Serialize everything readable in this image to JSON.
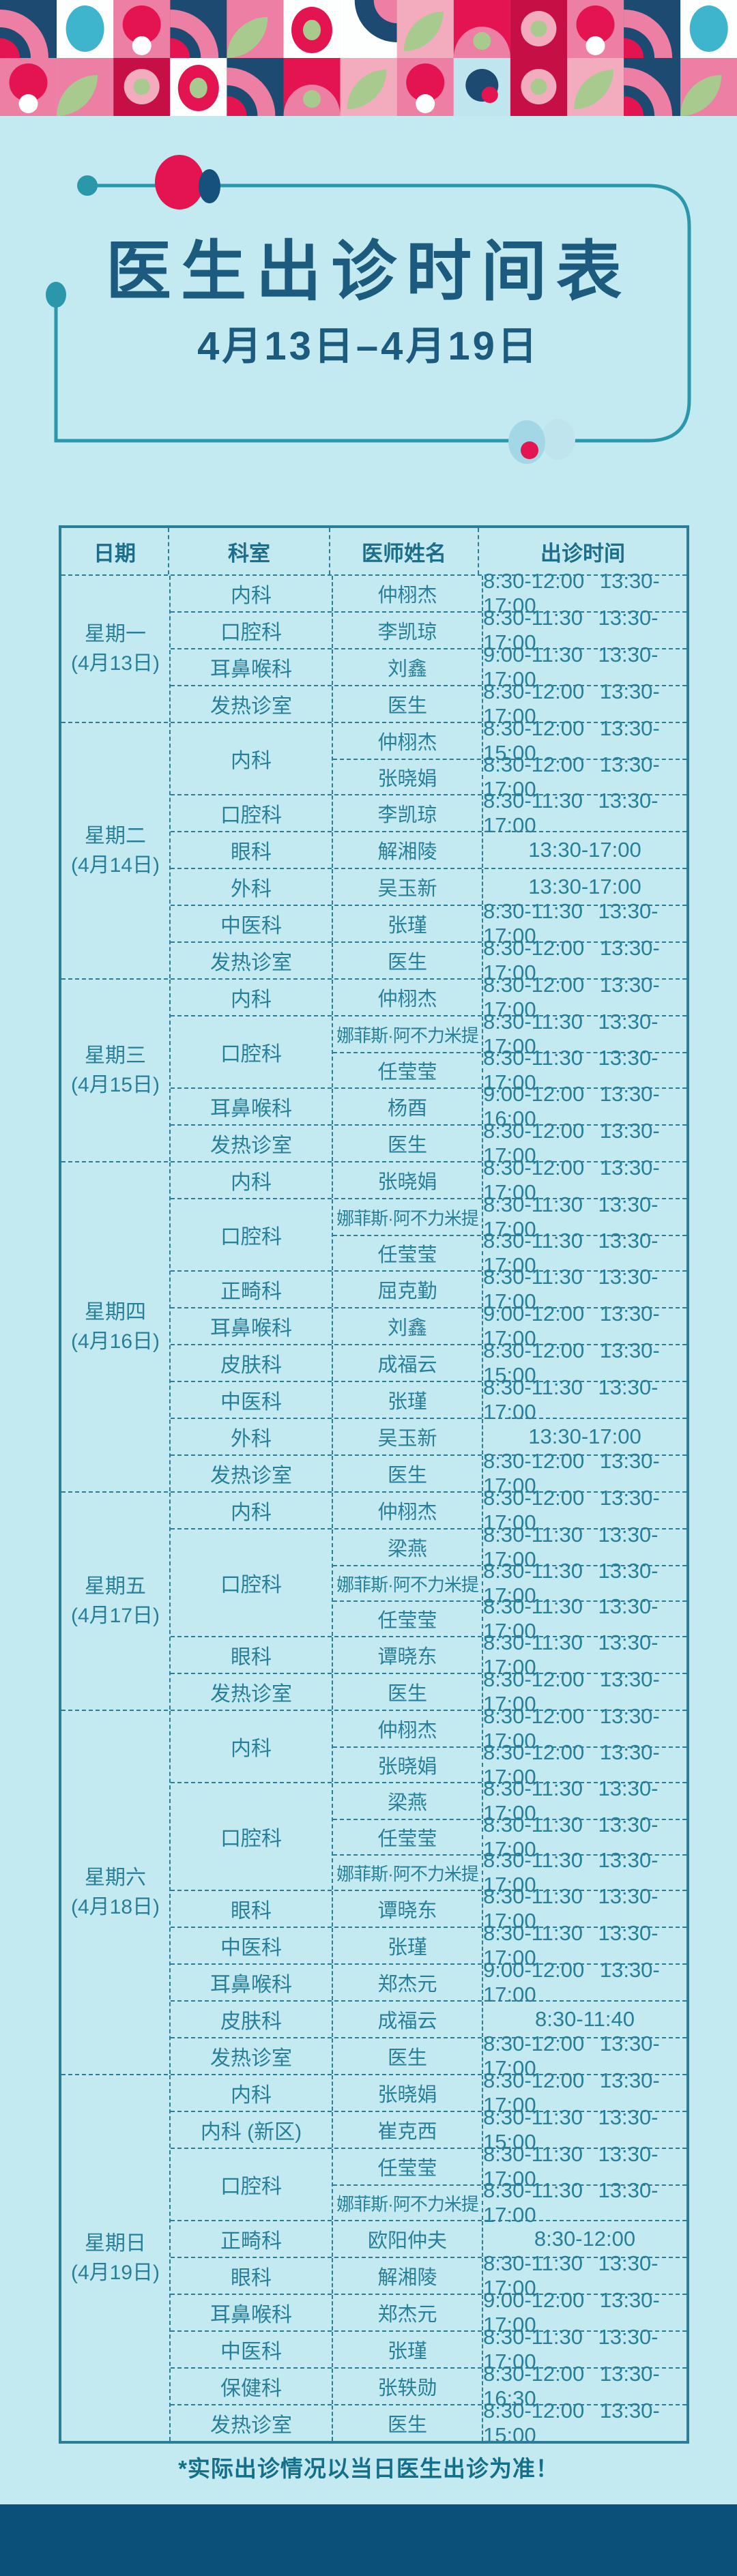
{
  "page": {
    "title": "医生出诊时间表",
    "subtitle": "4月13日–4月19日",
    "footnote": "*实际出诊情况以当日医生出诊为准！"
  },
  "colors": {
    "background": "#c2eaf0",
    "title_text": "#1c5b7e",
    "table_text": "#2a7f98",
    "table_border": "#2e7d96",
    "frame_teal": "#2b97ab",
    "accent_red": "#e31450",
    "accent_navy": "#15517b",
    "bottom_band": "#0a5078"
  },
  "table": {
    "headers": [
      "日期",
      "科室",
      "医师姓名",
      "出诊时间"
    ],
    "days": [
      {
        "label": "星期一",
        "date": "(4月13日)",
        "groups": [
          {
            "dept": "内科",
            "rows": [
              {
                "name": "仲栩杰",
                "time": "8:30-12:00 13:30-17:00"
              }
            ]
          },
          {
            "dept": "口腔科",
            "rows": [
              {
                "name": "李凯琼",
                "time": "8:30-11:30 13:30-17:00"
              }
            ]
          },
          {
            "dept": "耳鼻喉科",
            "rows": [
              {
                "name": "刘鑫",
                "time": "9:00-11:30 13:30-17:00"
              }
            ]
          },
          {
            "dept": "发热诊室",
            "rows": [
              {
                "name": "医生",
                "time": "8:30-12:00 13:30-17:00"
              }
            ]
          }
        ]
      },
      {
        "label": "星期二",
        "date": "(4月14日)",
        "groups": [
          {
            "dept": "内科",
            "rows": [
              {
                "name": "仲栩杰",
                "time": "8:30-12:00 13:30-15:00"
              },
              {
                "name": "张晓娟",
                "time": "8:30-12:00 13:30-17:00"
              }
            ]
          },
          {
            "dept": "口腔科",
            "rows": [
              {
                "name": "李凯琼",
                "time": "8:30-11:30 13:30-17:00"
              }
            ]
          },
          {
            "dept": "眼科",
            "rows": [
              {
                "name": "解湘陵",
                "time": "13:30-17:00"
              }
            ]
          },
          {
            "dept": "外科",
            "rows": [
              {
                "name": "吴玉新",
                "time": "13:30-17:00"
              }
            ]
          },
          {
            "dept": "中医科",
            "rows": [
              {
                "name": "张瑾",
                "time": "8:30-11:30 13:30-17:00"
              }
            ]
          },
          {
            "dept": "发热诊室",
            "rows": [
              {
                "name": "医生",
                "time": "8:30-12:00 13:30-17:00"
              }
            ]
          }
        ]
      },
      {
        "label": "星期三",
        "date": "(4月15日)",
        "groups": [
          {
            "dept": "内科",
            "rows": [
              {
                "name": "仲栩杰",
                "time": "8:30-12:00 13:30-17:00"
              }
            ]
          },
          {
            "dept": "口腔科",
            "rows": [
              {
                "name": "娜菲斯·阿不力米提",
                "time": "8:30-11:30 13:30-17:00"
              },
              {
                "name": "任莹莹",
                "time": "8:30-11:30 13:30-17:00"
              }
            ]
          },
          {
            "dept": "耳鼻喉科",
            "rows": [
              {
                "name": "杨酉",
                "time": "9:00-12:00 13:30-16:00"
              }
            ]
          },
          {
            "dept": "发热诊室",
            "rows": [
              {
                "name": "医生",
                "time": "8:30-12:00 13:30-17:00"
              }
            ]
          }
        ]
      },
      {
        "label": "星期四",
        "date": "(4月16日)",
        "groups": [
          {
            "dept": "内科",
            "rows": [
              {
                "name": "张晓娟",
                "time": "8:30-12:00 13:30-17:00"
              }
            ]
          },
          {
            "dept": "口腔科",
            "rows": [
              {
                "name": "娜菲斯·阿不力米提",
                "time": "8:30-11:30 13:30-17:00"
              },
              {
                "name": "任莹莹",
                "time": "8:30-11:30 13:30-17:00"
              }
            ]
          },
          {
            "dept": "正畸科",
            "rows": [
              {
                "name": "屈克勤",
                "time": "8:30-11:30 13:30-17:00"
              }
            ]
          },
          {
            "dept": "耳鼻喉科",
            "rows": [
              {
                "name": "刘鑫",
                "time": "9:00-12:00 13:30-17:00"
              }
            ]
          },
          {
            "dept": "皮肤科",
            "rows": [
              {
                "name": "成福云",
                "time": "8:30-12:00 13:30-15:00"
              }
            ]
          },
          {
            "dept": "中医科",
            "rows": [
              {
                "name": "张瑾",
                "time": "8:30-11:30 13:30-17:00"
              }
            ]
          },
          {
            "dept": "外科",
            "rows": [
              {
                "name": "吴玉新",
                "time": "13:30-17:00"
              }
            ]
          },
          {
            "dept": "发热诊室",
            "rows": [
              {
                "name": "医生",
                "time": "8:30-12:00 13:30-17:00"
              }
            ]
          }
        ]
      },
      {
        "label": "星期五",
        "date": "(4月17日)",
        "groups": [
          {
            "dept": "内科",
            "rows": [
              {
                "name": "仲栩杰",
                "time": "8:30-12:00 13:30-17:00"
              }
            ]
          },
          {
            "dept": "口腔科",
            "rows": [
              {
                "name": "梁燕",
                "time": "8:30-11:30 13:30-17:00"
              },
              {
                "name": "娜菲斯·阿不力米提",
                "time": "8:30-11:30 13:30-17:00"
              },
              {
                "name": "任莹莹",
                "time": "8:30-11:30 13:30-17:00"
              }
            ]
          },
          {
            "dept": "眼科",
            "rows": [
              {
                "name": "谭晓东",
                "time": "8:30-11:30 13:30-17:00"
              }
            ]
          },
          {
            "dept": "发热诊室",
            "rows": [
              {
                "name": "医生",
                "time": "8:30-12:00 13:30-17:00"
              }
            ]
          }
        ]
      },
      {
        "label": "星期六",
        "date": "(4月18日)",
        "groups": [
          {
            "dept": "内科",
            "rows": [
              {
                "name": "仲栩杰",
                "time": "8:30-12:00 13:30-17:00"
              },
              {
                "name": "张晓娟",
                "time": "8:30-12:00 13:30-17:00"
              }
            ]
          },
          {
            "dept": "口腔科",
            "rows": [
              {
                "name": "梁燕",
                "time": "8:30-11:30 13:30-17:00"
              },
              {
                "name": "任莹莹",
                "time": "8:30-11:30 13:30-17:00"
              },
              {
                "name": "娜菲斯·阿不力米提",
                "time": "8:30-11:30 13:30-17:00"
              }
            ]
          },
          {
            "dept": "眼科",
            "rows": [
              {
                "name": "谭晓东",
                "time": "8:30-11:30 13:30-17:00"
              }
            ]
          },
          {
            "dept": "中医科",
            "rows": [
              {
                "name": "张瑾",
                "time": "8:30-11:30 13:30-17:00"
              }
            ]
          },
          {
            "dept": "耳鼻喉科",
            "rows": [
              {
                "name": "郑杰元",
                "time": "9:00-12:00 13:30-17:00"
              }
            ]
          },
          {
            "dept": "皮肤科",
            "rows": [
              {
                "name": "成福云",
                "time": "8:30-11:40"
              }
            ]
          },
          {
            "dept": "发热诊室",
            "rows": [
              {
                "name": "医生",
                "time": "8:30-12:00 13:30-17:00"
              }
            ]
          }
        ]
      },
      {
        "label": "星期日",
        "date": "(4月19日)",
        "groups": [
          {
            "dept": "内科",
            "rows": [
              {
                "name": "张晓娟",
                "time": "8:30-12:00 13:30-17:00"
              }
            ]
          },
          {
            "dept": "内科 (新区)",
            "rows": [
              {
                "name": "崔克西",
                "time": "8:30-11:30 13:30-15:00"
              }
            ]
          },
          {
            "dept": "口腔科",
            "rows": [
              {
                "name": "任莹莹",
                "time": "8:30-11:30 13:30-17:00"
              },
              {
                "name": "娜菲斯·阿不力米提",
                "time": "8:30-11:30 13:30-17:00"
              }
            ]
          },
          {
            "dept": "正畸科",
            "rows": [
              {
                "name": "欧阳仲夫",
                "time": "8:30-12:00"
              }
            ]
          },
          {
            "dept": "眼科",
            "rows": [
              {
                "name": "解湘陵",
                "time": "8:30-11:30 13:30-17:00"
              }
            ]
          },
          {
            "dept": "耳鼻喉科",
            "rows": [
              {
                "name": "郑杰元",
                "time": "9:00-12:00 13:30-17:00"
              }
            ]
          },
          {
            "dept": "中医科",
            "rows": [
              {
                "name": "张瑾",
                "time": "8:30-11:30 13:30-17:00"
              }
            ]
          },
          {
            "dept": "保健科",
            "rows": [
              {
                "name": "张轶勋",
                "time": "8:30-12:00 13:30-16:30"
              }
            ]
          },
          {
            "dept": "发热诊室",
            "rows": [
              {
                "name": "医生",
                "time": "8:30-12:00 13:30-15:00"
              }
            ]
          }
        ]
      }
    ]
  }
}
